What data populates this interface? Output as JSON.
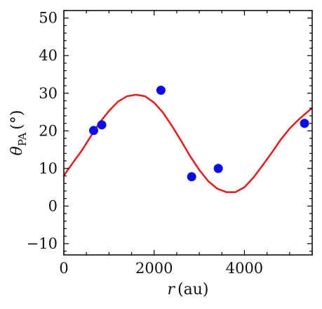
{
  "chart_data": {
    "type": "scatter",
    "xlabel": {
      "symbol": "r",
      "unit": "(au)"
    },
    "ylabel": {
      "symbol": "θ",
      "subscript": "PA",
      "unit": "(°)"
    },
    "xlim": [
      0,
      5500
    ],
    "ylim": [
      -13,
      52
    ],
    "xticks": [
      0,
      2000,
      4000
    ],
    "yticks": [
      -10,
      0,
      10,
      20,
      30,
      40,
      50
    ],
    "x_tick_labels": [
      "0",
      "2000",
      "4000"
    ],
    "y_tick_labels": [
      "−10",
      "0",
      "10",
      "20",
      "30",
      "40",
      "50"
    ],
    "x_minor_step": 500,
    "y_minor_step": 2,
    "series": [
      {
        "kind": "scatter",
        "color": "#0a0de8",
        "points": [
          {
            "x": 660,
            "y": 20.1
          },
          {
            "x": 840,
            "y": 21.6
          },
          {
            "x": 2150,
            "y": 30.8
          },
          {
            "x": 2830,
            "y": 7.8
          },
          {
            "x": 3420,
            "y": 10.0
          },
          {
            "x": 5330,
            "y": 22.0
          }
        ]
      },
      {
        "kind": "line",
        "color": "#e31a1c",
        "points": [
          {
            "x": 0,
            "y": 8.1
          },
          {
            "x": 200,
            "y": 11.5
          },
          {
            "x": 400,
            "y": 14.8
          },
          {
            "x": 600,
            "y": 18.6
          },
          {
            "x": 800,
            "y": 22.3
          },
          {
            "x": 1000,
            "y": 25.3
          },
          {
            "x": 1200,
            "y": 27.8
          },
          {
            "x": 1400,
            "y": 29.2
          },
          {
            "x": 1600,
            "y": 29.6
          },
          {
            "x": 1800,
            "y": 29.2
          },
          {
            "x": 2000,
            "y": 27.5
          },
          {
            "x": 2200,
            "y": 24.8
          },
          {
            "x": 2400,
            "y": 21.2
          },
          {
            "x": 2600,
            "y": 17.3
          },
          {
            "x": 2800,
            "y": 13.2
          },
          {
            "x": 3000,
            "y": 9.6
          },
          {
            "x": 3200,
            "y": 6.6
          },
          {
            "x": 3400,
            "y": 4.6
          },
          {
            "x": 3600,
            "y": 3.7
          },
          {
            "x": 3800,
            "y": 3.7
          },
          {
            "x": 4000,
            "y": 5.0
          },
          {
            "x": 4200,
            "y": 7.6
          },
          {
            "x": 4400,
            "y": 10.8
          },
          {
            "x": 4600,
            "y": 14.1
          },
          {
            "x": 4800,
            "y": 17.6
          },
          {
            "x": 5000,
            "y": 20.6
          },
          {
            "x": 5200,
            "y": 23.0
          },
          {
            "x": 5400,
            "y": 25.1
          },
          {
            "x": 5500,
            "y": 26.1
          }
        ]
      }
    ]
  }
}
